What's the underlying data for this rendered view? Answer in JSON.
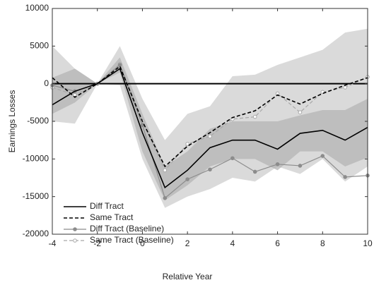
{
  "chart_data": {
    "type": "line",
    "x_label": "Relative Year",
    "y_label": "Earnings Losses",
    "x": [
      -4,
      -3,
      -2,
      -1,
      0,
      1,
      2,
      3,
      4,
      5,
      6,
      7,
      8,
      9,
      10
    ],
    "xlim": [
      -4,
      10
    ],
    "xticks": [
      -4,
      -2,
      0,
      2,
      4,
      6,
      8,
      10
    ],
    "ylim": [
      -20000,
      10000
    ],
    "yticks": [
      -20000,
      -15000,
      -10000,
      -5000,
      0,
      5000,
      10000
    ],
    "reference_line": 0,
    "bands": [
      {
        "color": "#dadada",
        "upper": [
          5000,
          2000,
          0,
          5000,
          -2000,
          -7500,
          -4000,
          -3000,
          1000,
          1200,
          2500,
          3500,
          4500,
          6800,
          7300
        ],
        "lower": [
          -5000,
          -5300,
          0,
          -200,
          -10000,
          -16500,
          -15000,
          -14000,
          -12500,
          -13000,
          -11000,
          -12000,
          -10000,
          -13000,
          -11000
        ]
      },
      {
        "color": "#b4b4b4",
        "upper": [
          800,
          2000,
          0,
          3500,
          -4000,
          -11000,
          -9000,
          -6000,
          -5000,
          -5000,
          -5000,
          -4200,
          -3500,
          -3500,
          -2000
        ],
        "lower": [
          -4000,
          -2500,
          0,
          1500,
          -9000,
          -15500,
          -13500,
          -11000,
          -10000,
          -10000,
          -11500,
          -9000,
          -9000,
          -11000,
          -9800
        ]
      }
    ],
    "series": [
      {
        "name": "Diff Tract",
        "color": "#000000",
        "dash": false,
        "marker": false,
        "values": [
          -2800,
          -1000,
          0,
          2000,
          -6500,
          -13800,
          -11500,
          -8500,
          -7500,
          -7500,
          -8700,
          -6600,
          -6200,
          -7500,
          -5800
        ]
      },
      {
        "name": "Same Tract",
        "color": "#000000",
        "dash": true,
        "marker": false,
        "values": [
          800,
          -1800,
          0,
          2300,
          -5000,
          -11000,
          -8300,
          -6500,
          -4500,
          -3600,
          -1500,
          -2700,
          -1300,
          -200,
          800
        ]
      },
      {
        "name": "Diff Tract (Baseline)",
        "color": "#8c8c8c",
        "dash": false,
        "marker": true,
        "values": [
          -200,
          -1000,
          0,
          2500,
          -5500,
          -15200,
          -12700,
          -11400,
          -9900,
          -11700,
          -10700,
          -10900,
          -9600,
          -12400,
          -12200
        ]
      },
      {
        "name": "Same Tract (Baseline)",
        "color": "#a8a8a8",
        "dash": true,
        "marker": true,
        "values": [
          -500,
          -1500,
          0,
          2600,
          -5000,
          -11500,
          -8000,
          -7000,
          -4700,
          -4400,
          -1300,
          -3800,
          -1100,
          -500,
          900
        ]
      }
    ]
  }
}
